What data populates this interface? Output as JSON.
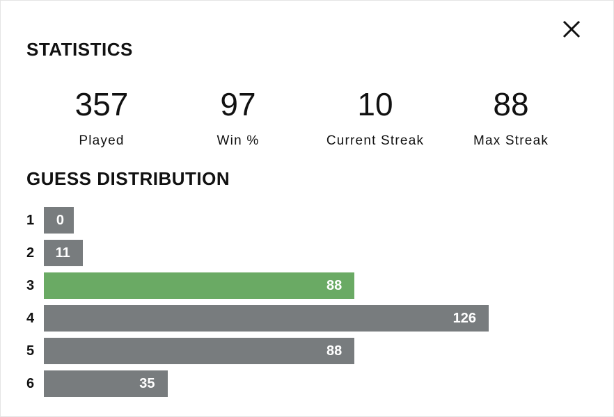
{
  "header": {
    "title": "STATISTICS"
  },
  "stats": [
    {
      "value": 357,
      "label": "Played"
    },
    {
      "value": 97,
      "label": "Win %"
    },
    {
      "value": 10,
      "label": "Current Streak"
    },
    {
      "value": 88,
      "label": "Max Streak"
    }
  ],
  "distribution": {
    "title": "GUESS DISTRIBUTION",
    "rows": [
      {
        "guess": 1,
        "count": 0
      },
      {
        "guess": 2,
        "count": 11
      },
      {
        "guess": 3,
        "count": 88
      },
      {
        "guess": 4,
        "count": 126
      },
      {
        "guess": 5,
        "count": 88
      },
      {
        "guess": 6,
        "count": 35
      }
    ],
    "highlight_guess": 3,
    "bar_color": "#787c7e",
    "highlight_color": "#6aaa64"
  }
}
